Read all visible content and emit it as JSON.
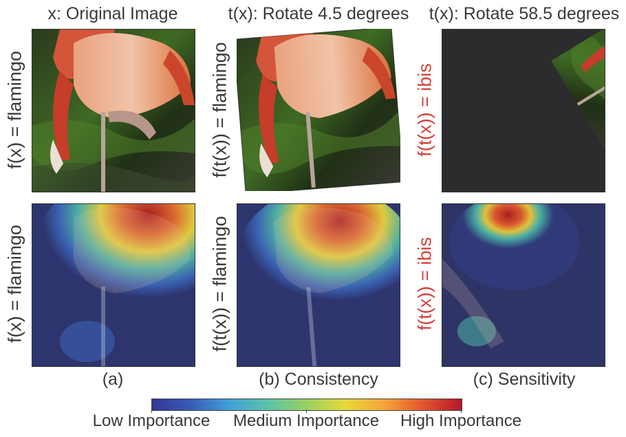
{
  "columns": {
    "a": {
      "title": "x: Original Image",
      "caption": "(a)"
    },
    "b": {
      "title": "t(x): Rotate 4.5 degrees",
      "caption": "(b) Consistency"
    },
    "c": {
      "title": "t(x): Rotate 58.5 degrees",
      "caption": "(c) Sensitivity"
    }
  },
  "row_labels": {
    "a_top": "f(x) = flamingo",
    "a_bottom": "f(x) = flamingo",
    "b_top": "f(t(x)) = flamingo",
    "b_bottom": "f(t(x)) = flamingo",
    "c_top": "f(t(x)) = ibis",
    "c_bottom": "f(t(x)) = ibis"
  },
  "colorbar": {
    "low": "Low Importance",
    "medium": "Medium Importance",
    "high": "High Importance"
  },
  "colors": {
    "highlight_label": "#d4413a",
    "text": "#3a3a3a"
  }
}
